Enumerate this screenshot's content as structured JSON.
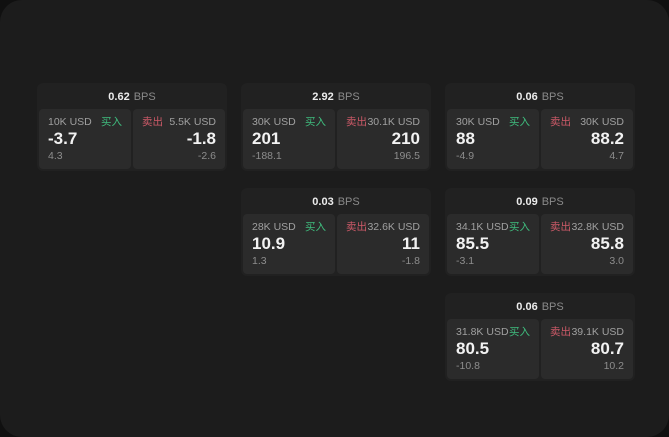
{
  "labels": {
    "buy": "买入",
    "sell": "卖出",
    "bps_unit": "BPS"
  },
  "colors": {
    "buy_green": "#3fbd7e",
    "sell_red": "#cd5a68",
    "window_bg": "#1c1c1c",
    "card_bg": "#212121",
    "tile_bg": "#2b2b2b"
  },
  "columns": [
    {
      "cards": [
        {
          "bps": "0.62",
          "buy": {
            "notional": "10K USD",
            "price": "-3.7",
            "delta": "4.3"
          },
          "sell": {
            "notional": "5.5K USD",
            "price": "-1.8",
            "delta": "-2.6"
          }
        }
      ]
    },
    {
      "cards": [
        {
          "bps": "2.92",
          "buy": {
            "notional": "30K USD",
            "price": "201",
            "delta": "-188.1"
          },
          "sell": {
            "notional": "30.1K USD",
            "price": "210",
            "delta": "196.5"
          }
        },
        {
          "bps": "0.03",
          "buy": {
            "notional": "28K USD",
            "price": "10.9",
            "delta": "1.3"
          },
          "sell": {
            "notional": "32.6K USD",
            "price": "11",
            "delta": "-1.8"
          }
        }
      ]
    },
    {
      "cards": [
        {
          "bps": "0.06",
          "buy": {
            "notional": "30K USD",
            "price": "88",
            "delta": "-4.9"
          },
          "sell": {
            "notional": "30K USD",
            "price": "88.2",
            "delta": "4.7"
          }
        },
        {
          "bps": "0.09",
          "buy": {
            "notional": "34.1K USD",
            "price": "85.5",
            "delta": "-3.1"
          },
          "sell": {
            "notional": "32.8K USD",
            "price": "85.8",
            "delta": "3.0"
          }
        },
        {
          "bps": "0.06",
          "buy": {
            "notional": "31.8K USD",
            "price": "80.5",
            "delta": "-10.8"
          },
          "sell": {
            "notional": "39.1K USD",
            "price": "80.7",
            "delta": "10.2"
          }
        }
      ]
    }
  ]
}
